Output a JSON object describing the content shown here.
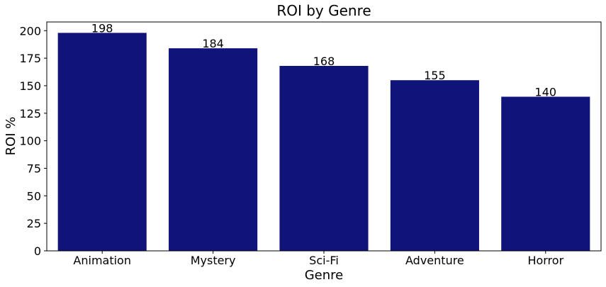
{
  "chart_data": {
    "type": "bar",
    "title": "ROI by Genre",
    "xlabel": "Genre",
    "ylabel": "ROI %",
    "categories": [
      "Animation",
      "Mystery",
      "Sci-Fi",
      "Adventure",
      "Horror"
    ],
    "values": [
      198,
      184,
      168,
      155,
      140
    ],
    "data_labels": [
      "198",
      "184",
      "168",
      "155",
      "140"
    ],
    "yticks": [
      0,
      25,
      50,
      75,
      100,
      125,
      150,
      175,
      200
    ],
    "ylim": [
      0,
      207.9
    ],
    "bar_color": "#10137a",
    "grid": false,
    "legend": "none"
  }
}
